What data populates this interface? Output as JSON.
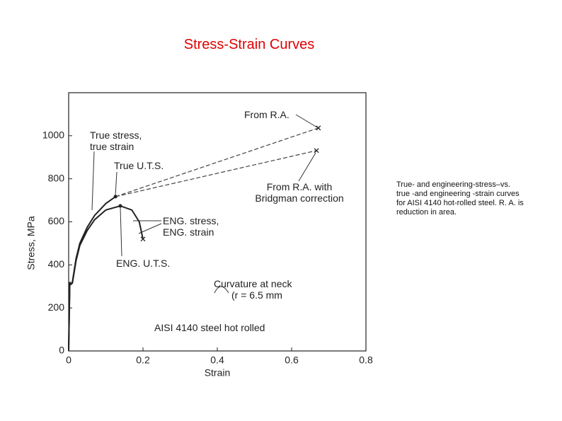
{
  "slide_title": "Stress-Strain Curves",
  "caption": "True- and engineering-stress–vs. true -and engineering -strain curves for AISI 4140 hot-rolled steel. R. A. is reduction in area.",
  "chart_data": {
    "type": "line",
    "x_label": "Strain",
    "y_label": "Stress, MPa",
    "xlim": [
      0,
      0.8
    ],
    "xticks": [
      0,
      0.2,
      0.4,
      0.6,
      0.8
    ],
    "ylim": [
      0,
      1200
    ],
    "yticks": [
      0,
      200,
      400,
      600,
      800,
      1000
    ],
    "grid": false,
    "series": [
      {
        "name": "True stress, true strain",
        "color": "#222222",
        "dash": false,
        "x": [
          0,
          0.003,
          0.006,
          0.01,
          0.02,
          0.03,
          0.05,
          0.07,
          0.1,
          0.126
        ],
        "values": [
          0,
          320,
          310,
          320,
          430,
          500,
          575,
          630,
          685,
          717
        ]
      },
      {
        "name": "From R.A.",
        "color": "#444444",
        "dash": true,
        "x": [
          0.126,
          0.672
        ],
        "values": [
          717,
          1036
        ]
      },
      {
        "name": "From R.A. with Bridgman correction",
        "color": "#444444",
        "dash": true,
        "x": [
          0.126,
          0.667
        ],
        "values": [
          717,
          931
        ]
      },
      {
        "name": "ENG. stress, ENG. strain",
        "color": "#222222",
        "dash": false,
        "x": [
          0,
          0.003,
          0.006,
          0.01,
          0.02,
          0.03,
          0.05,
          0.07,
          0.1,
          0.139,
          0.17,
          0.19,
          0.2
        ],
        "values": [
          0,
          320,
          310,
          315,
          420,
          490,
          560,
          610,
          655,
          674,
          655,
          600,
          520
        ]
      }
    ],
    "annotations": [
      {
        "text": "True U.T.S."
      },
      {
        "text": "ENG. U.T.S."
      },
      {
        "text": "Curvature at neck"
      },
      {
        "text": "(r = 6.5 mm"
      },
      {
        "text": "AISI 4140 steel hot rolled"
      }
    ]
  }
}
